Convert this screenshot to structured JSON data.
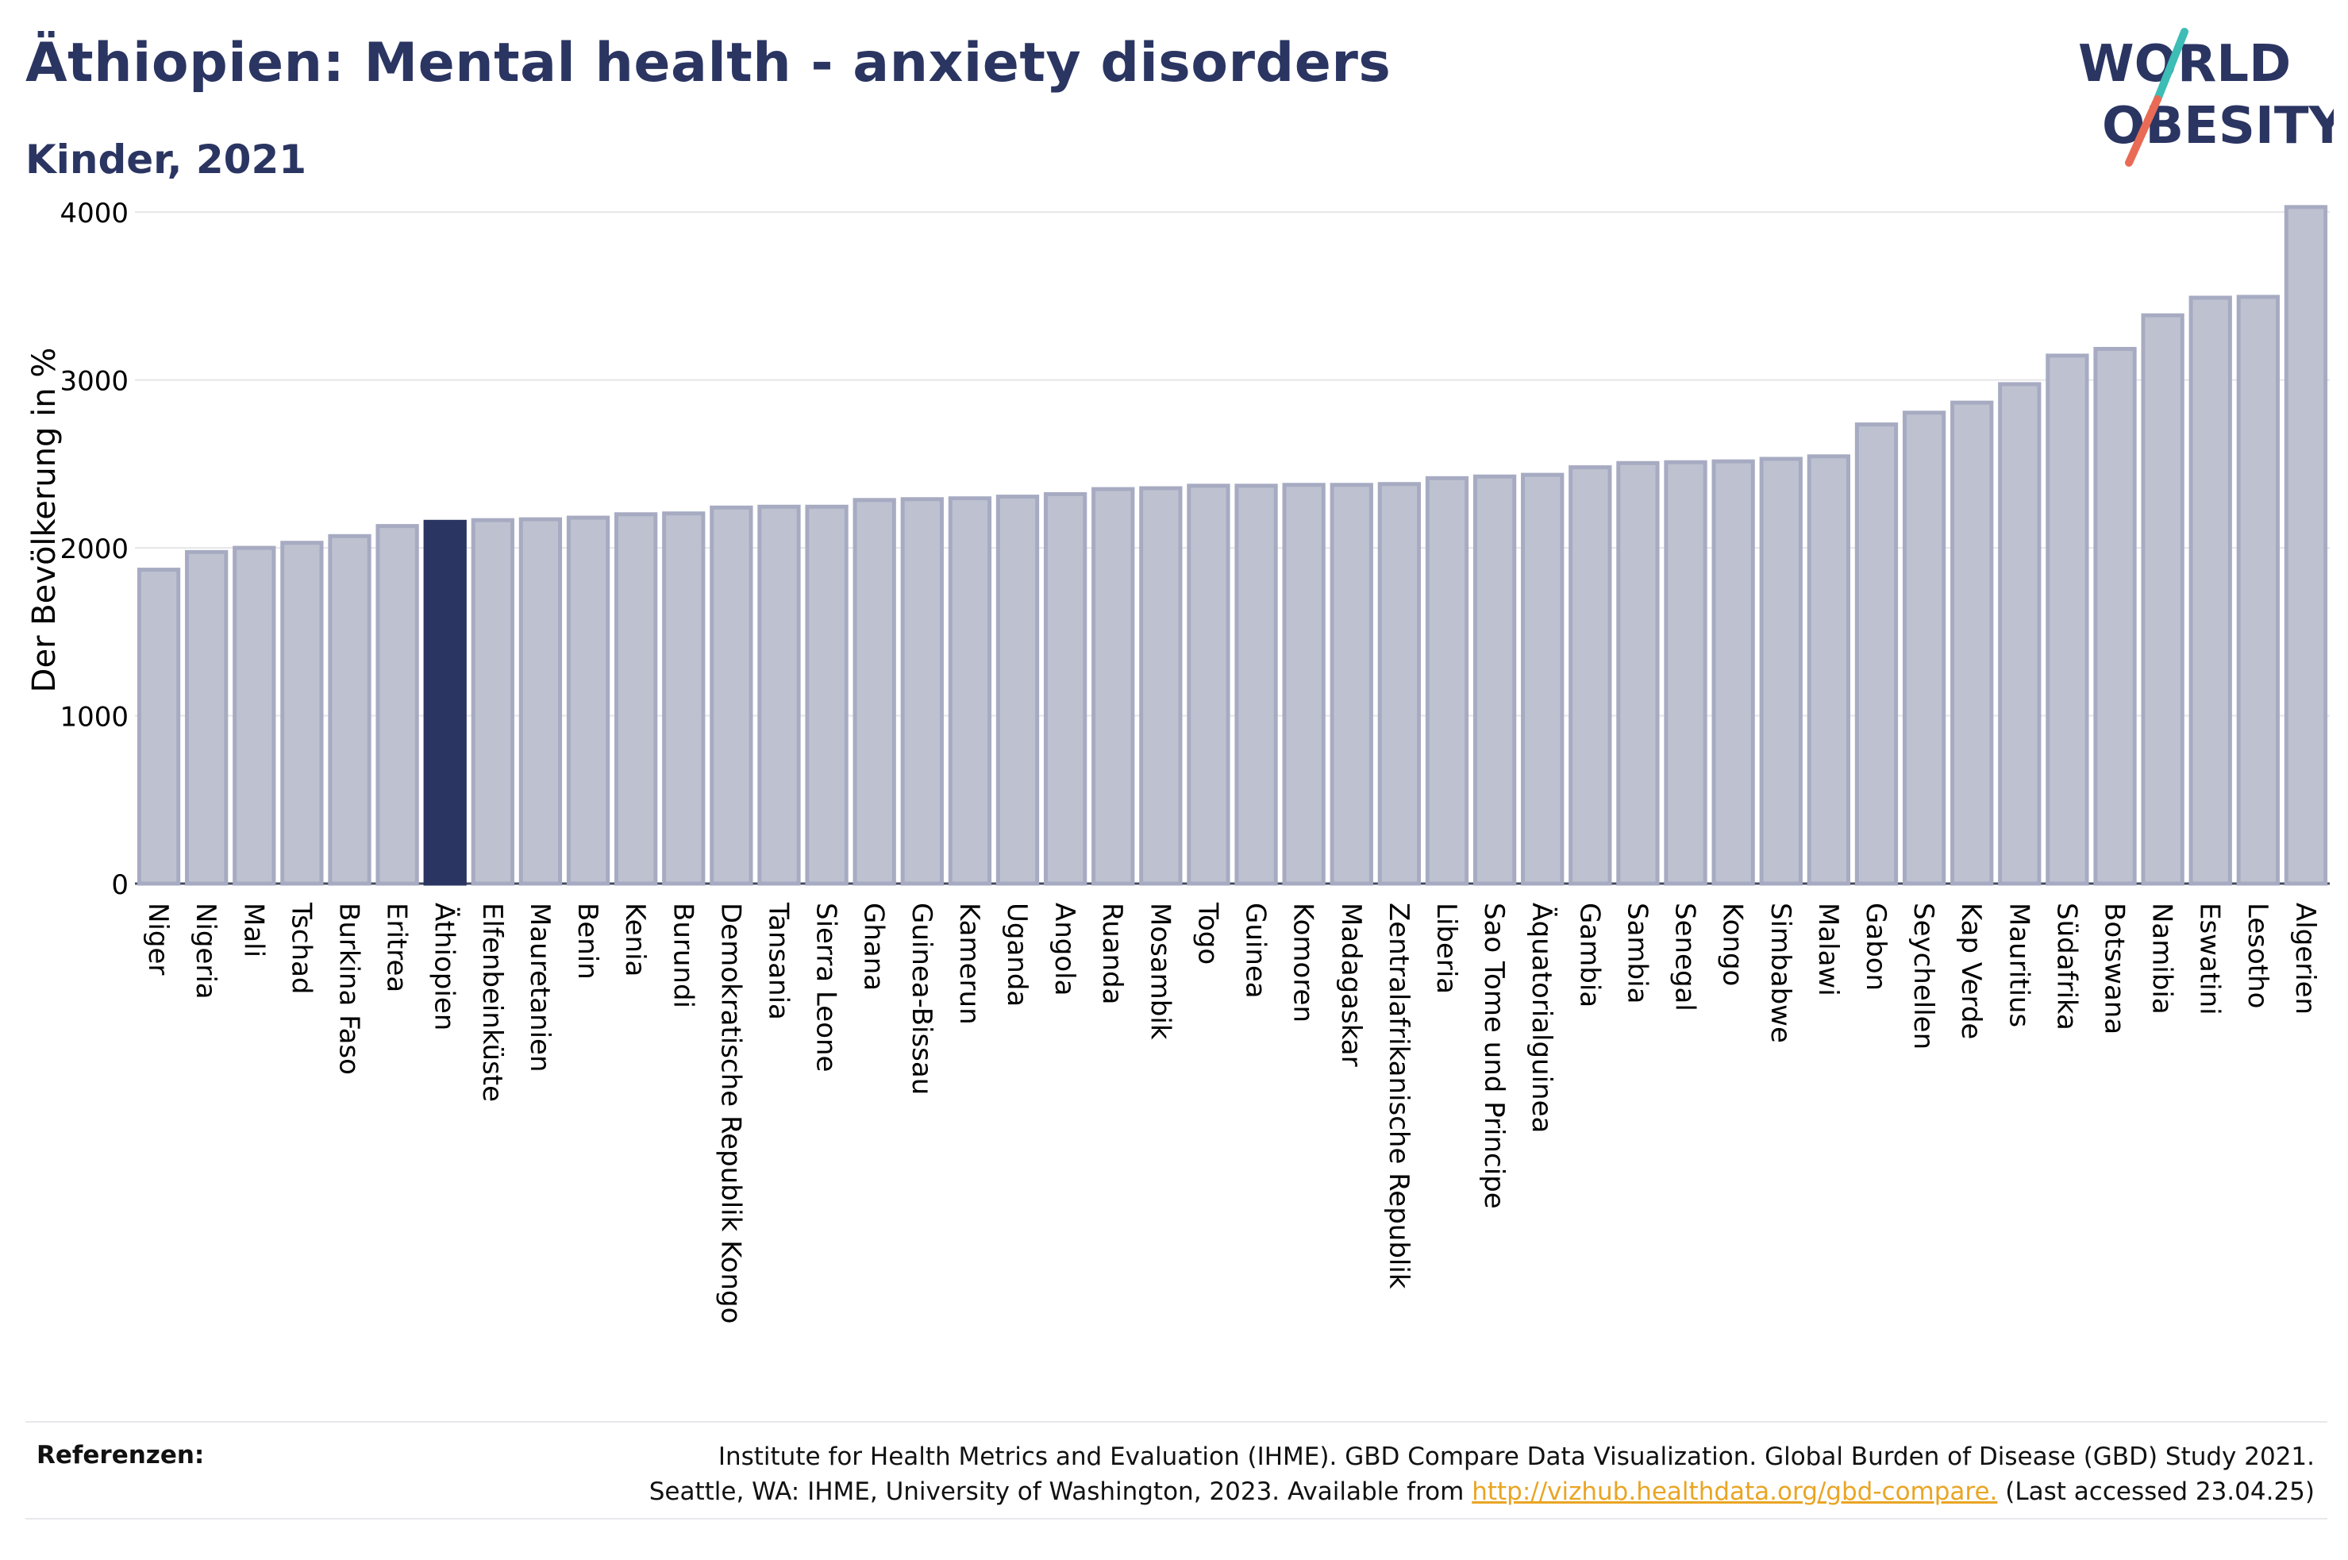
{
  "header": {
    "title": "Äthiopien: Mental health - anxiety disorders",
    "subtitle": "Kinder, 2021",
    "logo_line1": "WORLD",
    "logo_line2": "OBESITY"
  },
  "colors": {
    "bar": "#bec2d0",
    "bar_stroke": "#a7abc2",
    "highlight": "#2b3562",
    "grid": "#e6e6ea",
    "logo_teal": "#3dbdb5",
    "logo_red": "#e96b56"
  },
  "chart_data": {
    "type": "bar",
    "title": "Äthiopien: Mental health - anxiety disorders",
    "subtitle": "Kinder, 2021",
    "ylabel": "Der Bevölkerung in %",
    "xlabel": "",
    "ylim": [
      0,
      4100
    ],
    "yticks": [
      0,
      1000,
      2000,
      3000,
      4000
    ],
    "grid": true,
    "highlight": "Äthiopien",
    "categories": [
      "Niger",
      "Nigeria",
      "Mali",
      "Tschad",
      "Burkina Faso",
      "Eritrea",
      "Äthiopien",
      "Elfenbeinküste",
      "Mauretanien",
      "Benin",
      "Kenia",
      "Burundi",
      "Demokratische Republik Kongo",
      "Tansania",
      "Sierra Leone",
      "Ghana",
      "Guinea-Bissau",
      "Kamerun",
      "Uganda",
      "Angola",
      "Ruanda",
      "Mosambik",
      "Togo",
      "Guinea",
      "Komoren",
      "Madagaskar",
      "Zentralafrikanische Republik",
      "Liberia",
      "Sao Tome und Principe",
      "Äquatorialguinea",
      "Gambia",
      "Sambia",
      "Senegal",
      "Kongo",
      "Simbabwe",
      "Malawi",
      "Gabon",
      "Seychellen",
      "Kap Verde",
      "Mauritius",
      "Südafrika",
      "Botswana",
      "Namibia",
      "Eswatini",
      "Lesotho",
      "Algerien"
    ],
    "values": [
      1870,
      1975,
      2000,
      2030,
      2070,
      2130,
      2155,
      2165,
      2170,
      2180,
      2200,
      2205,
      2240,
      2245,
      2245,
      2285,
      2290,
      2295,
      2305,
      2320,
      2350,
      2355,
      2370,
      2370,
      2375,
      2375,
      2380,
      2415,
      2425,
      2435,
      2480,
      2505,
      2510,
      2515,
      2530,
      2545,
      2735,
      2805,
      2865,
      2975,
      3145,
      3185,
      3385,
      3490,
      3495,
      4030
    ]
  },
  "references": {
    "label": "Referenzen:",
    "line1": "Institute for Health Metrics and Evaluation (IHME). GBD Compare Data Visualization. Global Burden of Disease (GBD) Study 2021.",
    "line2_prefix": "Seattle, WA: IHME, University of Washington, 2023. Available from ",
    "link": "http://vizhub.healthdata.org/gbd-compare.",
    "line2_suffix": " (Last accessed 23.04.25)"
  }
}
